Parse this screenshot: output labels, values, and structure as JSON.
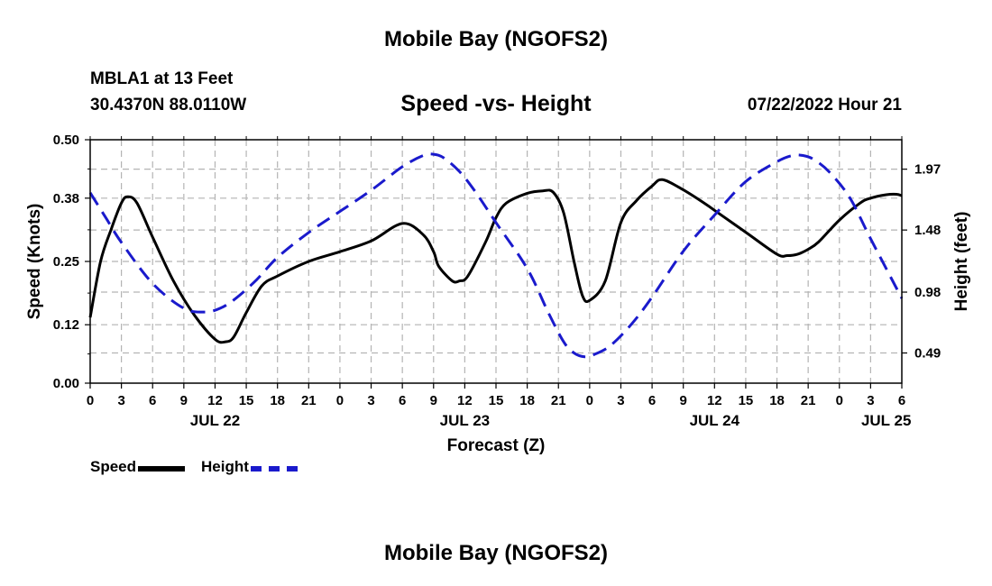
{
  "header": {
    "title": "Mobile Bay (NGOFS2)",
    "station": "MBLA1 at 13 Feet",
    "coords": "30.4370N  88.0110W",
    "plot_title": "Speed -vs- Height",
    "timestamp": "07/22/2022 Hour 21"
  },
  "footer": {
    "title": "Mobile Bay (NGOFS2)"
  },
  "legend": {
    "speed_label": "Speed",
    "height_label": "Height"
  },
  "colors": {
    "speed": "#000000",
    "height": "#1a1acc",
    "grid": "#b4b4b4"
  },
  "chart_data": {
    "type": "line",
    "xlabel": "Forecast (Z)",
    "ylabel_left": "Speed (Knots)",
    "ylabel_right": "Height (feet)",
    "xlim": [
      0,
      78
    ],
    "ylim_left": [
      0,
      0.5
    ],
    "ylim_right": [
      0.247,
      2.207
    ],
    "x_ticks": [
      0,
      3,
      6,
      9,
      12,
      15,
      18,
      21,
      24,
      27,
      30,
      33,
      36,
      39,
      42,
      45,
      48,
      51,
      54,
      57,
      60,
      63,
      66,
      69,
      72,
      75,
      78
    ],
    "x_tick_labels": [
      "0",
      "3",
      "6",
      "9",
      "12",
      "15",
      "18",
      "21",
      "0",
      "3",
      "6",
      "9",
      "12",
      "15",
      "18",
      "21",
      "0",
      "3",
      "6",
      "9",
      "12",
      "15",
      "18",
      "21",
      "0",
      "3",
      "6"
    ],
    "date_labels": [
      {
        "x": 12,
        "label": "JUL 22"
      },
      {
        "x": 36,
        "label": "JUL 23"
      },
      {
        "x": 60,
        "label": "JUL 24"
      },
      {
        "x": 76.5,
        "label": "JUL 25"
      }
    ],
    "y_left_ticks": [
      0.0,
      0.12,
      0.25,
      0.38,
      0.5
    ],
    "y_left_tick_labels": [
      "0.00",
      "0.12",
      "0.25",
      "0.38",
      "0.50"
    ],
    "y_right_ticks": [
      0.49,
      0.98,
      1.48,
      1.97
    ],
    "y_right_tick_labels": [
      "0.49",
      "0.98",
      "1.48",
      "1.97"
    ],
    "grid": true,
    "series": [
      {
        "name": "Speed",
        "axis": "left",
        "style": "solid",
        "x": [
          0,
          1,
          2,
          3,
          3.6,
          4.5,
          6,
          8,
          10,
          12,
          13,
          13.8,
          15,
          16.5,
          18,
          21,
          24,
          27,
          30,
          32,
          33,
          33.5,
          34.8,
          35.5,
          36.3,
          38,
          39,
          40,
          42,
          43.5,
          44.5,
          45.5,
          46.5,
          47.3,
          48,
          49.5,
          51,
          52.5,
          54,
          55,
          57,
          59,
          60,
          63,
          66,
          67,
          68,
          69,
          70,
          72,
          74,
          75,
          76.5,
          77.5,
          78
        ],
        "values": [
          0.135,
          0.25,
          0.315,
          0.37,
          0.383,
          0.37,
          0.3,
          0.21,
          0.14,
          0.09,
          0.085,
          0.095,
          0.145,
          0.2,
          0.22,
          0.25,
          0.27,
          0.292,
          0.328,
          0.305,
          0.27,
          0.24,
          0.21,
          0.21,
          0.22,
          0.29,
          0.34,
          0.37,
          0.39,
          0.395,
          0.392,
          0.35,
          0.25,
          0.18,
          0.17,
          0.21,
          0.33,
          0.375,
          0.405,
          0.418,
          0.397,
          0.37,
          0.355,
          0.31,
          0.265,
          0.262,
          0.265,
          0.275,
          0.29,
          0.335,
          0.37,
          0.38,
          0.387,
          0.388,
          0.385
        ]
      },
      {
        "name": "Height",
        "axis": "right",
        "style": "dashed",
        "x": [
          0,
          1.5,
          3,
          6,
          9,
          11,
          12.5,
          14,
          16,
          18,
          21,
          24,
          27,
          30,
          32,
          33,
          34,
          35.5,
          37,
          39,
          42,
          44,
          45.5,
          46.5,
          47.5,
          48.5,
          50,
          52,
          54,
          57,
          60,
          63,
          66,
          67.5,
          68.5,
          69.5,
          71,
          73,
          75,
          78
        ],
        "values": [
          1.78,
          1.58,
          1.38,
          1.05,
          0.85,
          0.82,
          0.85,
          0.93,
          1.08,
          1.26,
          1.46,
          1.63,
          1.8,
          1.99,
          2.08,
          2.09,
          2.06,
          1.95,
          1.79,
          1.54,
          1.17,
          0.82,
          0.58,
          0.49,
          0.46,
          0.48,
          0.55,
          0.72,
          0.94,
          1.31,
          1.6,
          1.87,
          2.03,
          2.08,
          2.08,
          2.05,
          1.95,
          1.74,
          1.41,
          0.93
        ]
      }
    ]
  }
}
